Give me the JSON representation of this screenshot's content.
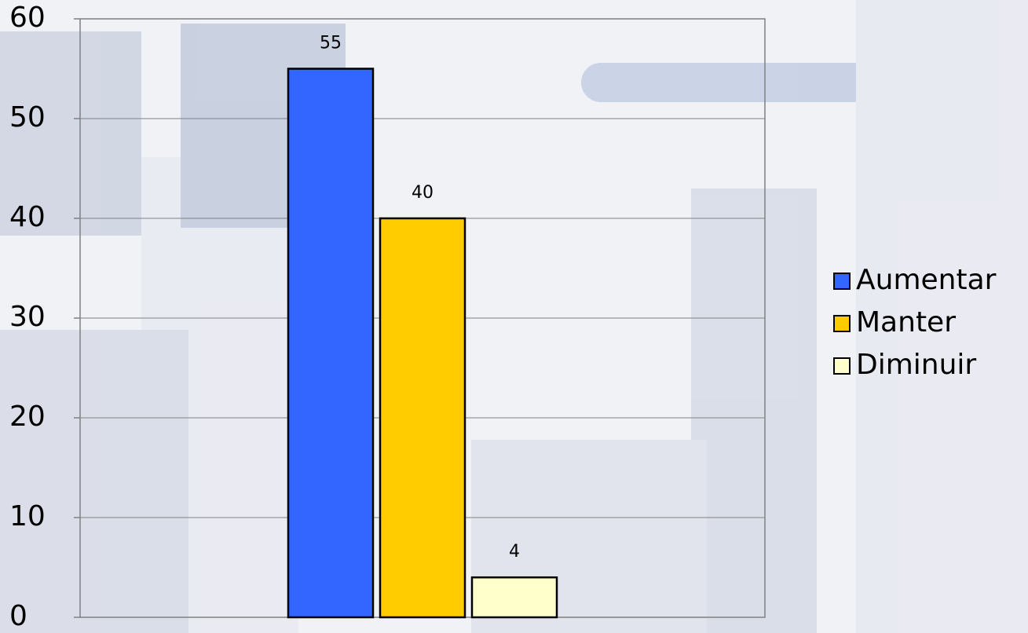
{
  "chart_data": {
    "type": "bar",
    "categories": [
      null
    ],
    "series": [
      {
        "name": "Aumentar",
        "color": "#3366ff",
        "values": [
          55
        ]
      },
      {
        "name": "Manter",
        "color": "#ffcc00",
        "values": [
          40
        ]
      },
      {
        "name": "Diminuir",
        "color": "#ffffcc",
        "values": [
          4
        ]
      }
    ],
    "ylim": [
      0,
      60
    ],
    "yticks": [
      0,
      10,
      20,
      30,
      40,
      50,
      60
    ],
    "grid": true,
    "legend": "right"
  }
}
